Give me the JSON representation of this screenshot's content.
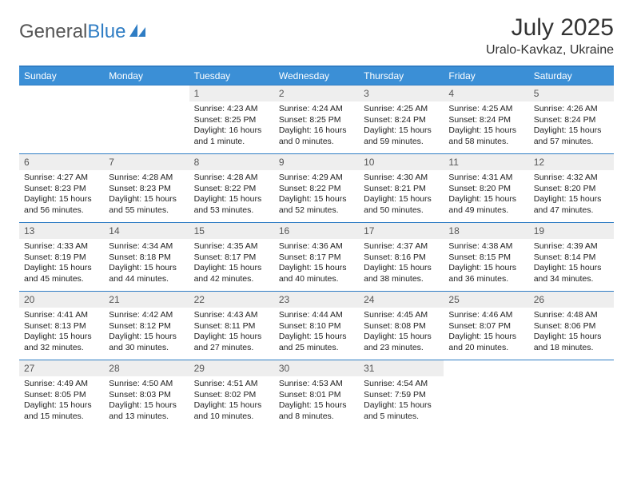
{
  "logo": {
    "text_general": "General",
    "text_blue": "Blue"
  },
  "title": {
    "month": "July 2025",
    "location": "Uralo-Kavkaz, Ukraine"
  },
  "colors": {
    "header_bg": "#3b8fd6",
    "border": "#2f7dc4",
    "daynum_bg": "#eeeeee",
    "text": "#222222"
  },
  "day_headers": [
    "Sunday",
    "Monday",
    "Tuesday",
    "Wednesday",
    "Thursday",
    "Friday",
    "Saturday"
  ],
  "weeks": [
    [
      null,
      null,
      {
        "n": "1",
        "sunrise": "Sunrise: 4:23 AM",
        "sunset": "Sunset: 8:25 PM",
        "daylight": "Daylight: 16 hours and 1 minute."
      },
      {
        "n": "2",
        "sunrise": "Sunrise: 4:24 AM",
        "sunset": "Sunset: 8:25 PM",
        "daylight": "Daylight: 16 hours and 0 minutes."
      },
      {
        "n": "3",
        "sunrise": "Sunrise: 4:25 AM",
        "sunset": "Sunset: 8:24 PM",
        "daylight": "Daylight: 15 hours and 59 minutes."
      },
      {
        "n": "4",
        "sunrise": "Sunrise: 4:25 AM",
        "sunset": "Sunset: 8:24 PM",
        "daylight": "Daylight: 15 hours and 58 minutes."
      },
      {
        "n": "5",
        "sunrise": "Sunrise: 4:26 AM",
        "sunset": "Sunset: 8:24 PM",
        "daylight": "Daylight: 15 hours and 57 minutes."
      }
    ],
    [
      {
        "n": "6",
        "sunrise": "Sunrise: 4:27 AM",
        "sunset": "Sunset: 8:23 PM",
        "daylight": "Daylight: 15 hours and 56 minutes."
      },
      {
        "n": "7",
        "sunrise": "Sunrise: 4:28 AM",
        "sunset": "Sunset: 8:23 PM",
        "daylight": "Daylight: 15 hours and 55 minutes."
      },
      {
        "n": "8",
        "sunrise": "Sunrise: 4:28 AM",
        "sunset": "Sunset: 8:22 PM",
        "daylight": "Daylight: 15 hours and 53 minutes."
      },
      {
        "n": "9",
        "sunrise": "Sunrise: 4:29 AM",
        "sunset": "Sunset: 8:22 PM",
        "daylight": "Daylight: 15 hours and 52 minutes."
      },
      {
        "n": "10",
        "sunrise": "Sunrise: 4:30 AM",
        "sunset": "Sunset: 8:21 PM",
        "daylight": "Daylight: 15 hours and 50 minutes."
      },
      {
        "n": "11",
        "sunrise": "Sunrise: 4:31 AM",
        "sunset": "Sunset: 8:20 PM",
        "daylight": "Daylight: 15 hours and 49 minutes."
      },
      {
        "n": "12",
        "sunrise": "Sunrise: 4:32 AM",
        "sunset": "Sunset: 8:20 PM",
        "daylight": "Daylight: 15 hours and 47 minutes."
      }
    ],
    [
      {
        "n": "13",
        "sunrise": "Sunrise: 4:33 AM",
        "sunset": "Sunset: 8:19 PM",
        "daylight": "Daylight: 15 hours and 45 minutes."
      },
      {
        "n": "14",
        "sunrise": "Sunrise: 4:34 AM",
        "sunset": "Sunset: 8:18 PM",
        "daylight": "Daylight: 15 hours and 44 minutes."
      },
      {
        "n": "15",
        "sunrise": "Sunrise: 4:35 AM",
        "sunset": "Sunset: 8:17 PM",
        "daylight": "Daylight: 15 hours and 42 minutes."
      },
      {
        "n": "16",
        "sunrise": "Sunrise: 4:36 AM",
        "sunset": "Sunset: 8:17 PM",
        "daylight": "Daylight: 15 hours and 40 minutes."
      },
      {
        "n": "17",
        "sunrise": "Sunrise: 4:37 AM",
        "sunset": "Sunset: 8:16 PM",
        "daylight": "Daylight: 15 hours and 38 minutes."
      },
      {
        "n": "18",
        "sunrise": "Sunrise: 4:38 AM",
        "sunset": "Sunset: 8:15 PM",
        "daylight": "Daylight: 15 hours and 36 minutes."
      },
      {
        "n": "19",
        "sunrise": "Sunrise: 4:39 AM",
        "sunset": "Sunset: 8:14 PM",
        "daylight": "Daylight: 15 hours and 34 minutes."
      }
    ],
    [
      {
        "n": "20",
        "sunrise": "Sunrise: 4:41 AM",
        "sunset": "Sunset: 8:13 PM",
        "daylight": "Daylight: 15 hours and 32 minutes."
      },
      {
        "n": "21",
        "sunrise": "Sunrise: 4:42 AM",
        "sunset": "Sunset: 8:12 PM",
        "daylight": "Daylight: 15 hours and 30 minutes."
      },
      {
        "n": "22",
        "sunrise": "Sunrise: 4:43 AM",
        "sunset": "Sunset: 8:11 PM",
        "daylight": "Daylight: 15 hours and 27 minutes."
      },
      {
        "n": "23",
        "sunrise": "Sunrise: 4:44 AM",
        "sunset": "Sunset: 8:10 PM",
        "daylight": "Daylight: 15 hours and 25 minutes."
      },
      {
        "n": "24",
        "sunrise": "Sunrise: 4:45 AM",
        "sunset": "Sunset: 8:08 PM",
        "daylight": "Daylight: 15 hours and 23 minutes."
      },
      {
        "n": "25",
        "sunrise": "Sunrise: 4:46 AM",
        "sunset": "Sunset: 8:07 PM",
        "daylight": "Daylight: 15 hours and 20 minutes."
      },
      {
        "n": "26",
        "sunrise": "Sunrise: 4:48 AM",
        "sunset": "Sunset: 8:06 PM",
        "daylight": "Daylight: 15 hours and 18 minutes."
      }
    ],
    [
      {
        "n": "27",
        "sunrise": "Sunrise: 4:49 AM",
        "sunset": "Sunset: 8:05 PM",
        "daylight": "Daylight: 15 hours and 15 minutes."
      },
      {
        "n": "28",
        "sunrise": "Sunrise: 4:50 AM",
        "sunset": "Sunset: 8:03 PM",
        "daylight": "Daylight: 15 hours and 13 minutes."
      },
      {
        "n": "29",
        "sunrise": "Sunrise: 4:51 AM",
        "sunset": "Sunset: 8:02 PM",
        "daylight": "Daylight: 15 hours and 10 minutes."
      },
      {
        "n": "30",
        "sunrise": "Sunrise: 4:53 AM",
        "sunset": "Sunset: 8:01 PM",
        "daylight": "Daylight: 15 hours and 8 minutes."
      },
      {
        "n": "31",
        "sunrise": "Sunrise: 4:54 AM",
        "sunset": "Sunset: 7:59 PM",
        "daylight": "Daylight: 15 hours and 5 minutes."
      },
      null,
      null
    ]
  ]
}
